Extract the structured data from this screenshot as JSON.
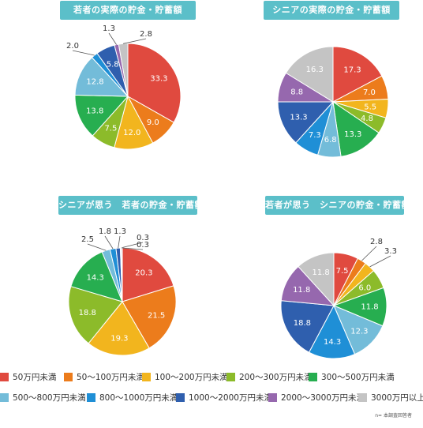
{
  "legend": {
    "items": [
      {
        "label": "50万円未満",
        "color": "#e04a3f"
      },
      {
        "label": "50～100万円未満",
        "color": "#ec7c1c"
      },
      {
        "label": "100～200万円未満",
        "color": "#f2b51e"
      },
      {
        "label": "200～300万円未満",
        "color": "#8cbb2a"
      },
      {
        "label": "300～500万円未満",
        "color": "#27ae50"
      },
      {
        "label": "500～800万円未満",
        "color": "#73bcd9"
      },
      {
        "label": "800～1000万円未満",
        "color": "#1f8fd6"
      },
      {
        "label": "1000～2000万円未満",
        "color": "#2f5fae"
      },
      {
        "label": "2000～3000万円未満",
        "color": "#9668ae"
      },
      {
        "label": "3000万円以上",
        "color": "#c4c4c4"
      }
    ]
  },
  "footnote": "n= 本調査回答者",
  "chart_data": [
    {
      "type": "pie",
      "title": "若者の実際の貯金・貯蓄額",
      "categories": [
        "50万円未満",
        "50～100万円未満",
        "100～200万円未満",
        "200～300万円未満",
        "300～500万円未満",
        "500～800万円未満",
        "800～1000万円未満",
        "1000～2000万円未満",
        "2000～3000万円未満",
        "3000万円以上"
      ],
      "values": [
        33.3,
        9.0,
        12.0,
        7.5,
        13.8,
        12.8,
        2.0,
        5.8,
        1.3,
        2.8
      ]
    },
    {
      "type": "pie",
      "title": "シニアの実際の貯金・貯蓄額",
      "categories": [
        "50万円未満",
        "50～100万円未満",
        "100～200万円未満",
        "200～300万円未満",
        "300～500万円未満",
        "500～800万円未満",
        "800～1000万円未満",
        "1000～2000万円未満",
        "2000～3000万円未満",
        "3000万円以上"
      ],
      "values": [
        17.3,
        7.0,
        5.5,
        4.8,
        13.3,
        6.8,
        7.3,
        13.3,
        8.8,
        16.3
      ]
    },
    {
      "type": "pie",
      "title": "シニアが思う　若者の貯金・貯蓄額",
      "categories": [
        "50万円未満",
        "50～100万円未満",
        "100～200万円未満",
        "200～300万円未満",
        "300～500万円未満",
        "500～800万円未満",
        "800～1000万円未満",
        "1000～2000万円未満",
        "2000～3000万円未満",
        "3000万円以上"
      ],
      "values": [
        20.3,
        21.5,
        19.3,
        18.8,
        14.3,
        2.5,
        1.8,
        1.3,
        0.3,
        0.3
      ]
    },
    {
      "type": "pie",
      "title": "若者が思う　シニアの貯金・貯蓄額",
      "categories": [
        "50万円未満",
        "50～100万円未満",
        "100～200万円未満",
        "200～300万円未満",
        "300～500万円未満",
        "500～800万円未満",
        "800～1000万円未満",
        "1000～2000万円未満",
        "2000～3000万円未満",
        "3000万円以上"
      ],
      "values": [
        7.5,
        2.8,
        3.3,
        6.0,
        11.8,
        12.3,
        14.3,
        18.8,
        11.8,
        11.8
      ]
    }
  ]
}
